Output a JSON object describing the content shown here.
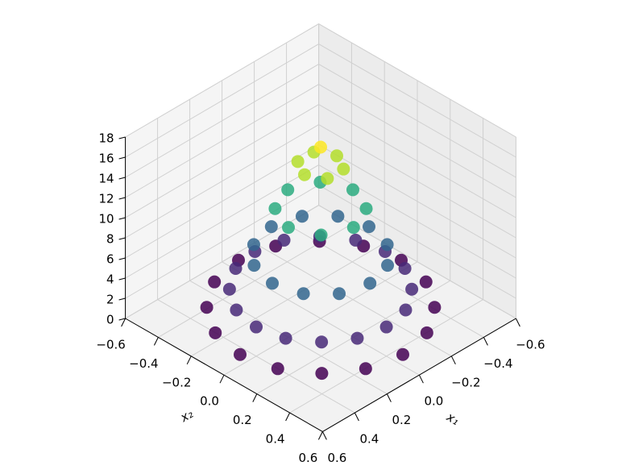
{
  "chart_data": {
    "type": "scatter3d",
    "x_label": "x₁",
    "y_label": "x₂",
    "x": [
      0,
      0.1,
      0.05,
      -0.05,
      -0.1,
      -0.05,
      0.05,
      0.2,
      0.14,
      0,
      -0.14,
      -0.2,
      -0.14,
      0,
      0.14,
      0.3,
      0.26,
      0.15,
      0,
      -0.15,
      -0.26,
      -0.3,
      -0.26,
      -0.15,
      0,
      0.15,
      0.26,
      0.4,
      0.37,
      0.28,
      0.15,
      0,
      -0.15,
      -0.28,
      -0.37,
      -0.4,
      -0.37,
      -0.28,
      -0.15,
      0,
      0.15,
      0.28,
      0.37,
      0.5,
      0.46,
      0.35,
      0.19,
      0,
      -0.19,
      -0.35,
      -0.46,
      -0.5,
      -0.46,
      -0.35,
      -0.19,
      0,
      0.19,
      0.35,
      0.46
    ],
    "y": [
      0,
      0,
      0.09,
      0.09,
      0,
      -0.09,
      -0.09,
      0,
      0.14,
      0.2,
      0.14,
      0,
      -0.14,
      -0.2,
      -0.14,
      0,
      0.15,
      0.26,
      0.3,
      0.26,
      0.15,
      0,
      -0.15,
      -0.26,
      -0.3,
      -0.26,
      -0.15,
      0,
      0.15,
      0.28,
      0.37,
      0.4,
      0.37,
      0.28,
      0.15,
      0,
      -0.15,
      -0.28,
      -0.37,
      -0.4,
      -0.37,
      -0.28,
      -0.15,
      0,
      0.19,
      0.35,
      0.46,
      0.5,
      0.46,
      0.35,
      0.19,
      0,
      -0.19,
      -0.35,
      -0.46,
      -0.5,
      -0.46,
      -0.35,
      -0.19
    ],
    "z": [
      17,
      15.2,
      15.2,
      15.2,
      15.2,
      15.2,
      15.2,
      10.9,
      10.9,
      10.9,
      10.9,
      10.9,
      10.9,
      10.9,
      10.9,
      6.3,
      6.3,
      6.3,
      6.3,
      6.3,
      6.3,
      6.3,
      6.3,
      6.3,
      6.3,
      6.3,
      6.3,
      2.9,
      2.9,
      2.9,
      2.9,
      2.9,
      2.9,
      2.9,
      2.9,
      2.9,
      2.9,
      2.9,
      2.9,
      2.9,
      2.9,
      2.9,
      2.9,
      1.1,
      1.1,
      1.1,
      1.1,
      1.1,
      1.1,
      1.1,
      1.1,
      1.1,
      1.1,
      1.1,
      1.1,
      1.1,
      1.1,
      1.1,
      1.1
    ],
    "colormap": "viridis",
    "xlim": [
      -0.6,
      0.6
    ],
    "ylim": [
      -0.6,
      0.6
    ],
    "zlim": [
      0,
      18
    ],
    "xticks": [
      {
        "value": -0.6,
        "label": "−0.6"
      },
      {
        "value": -0.4,
        "label": "−0.4"
      },
      {
        "value": -0.2,
        "label": "−0.2"
      },
      {
        "value": 0,
        "label": "0.0"
      },
      0.2,
      0.4,
      0.6
    ],
    "yticks": [
      {
        "value": -0.6,
        "label": "−0.6"
      },
      {
        "value": -0.4,
        "label": "−0.4"
      },
      {
        "value": -0.2,
        "label": "−0.2"
      },
      {
        "value": 0,
        "label": "0.0"
      },
      0.2,
      0.4,
      0.6
    ],
    "zticks": [
      0,
      2,
      4,
      6,
      8,
      10,
      12,
      14,
      16,
      18
    ],
    "grid": true
  }
}
